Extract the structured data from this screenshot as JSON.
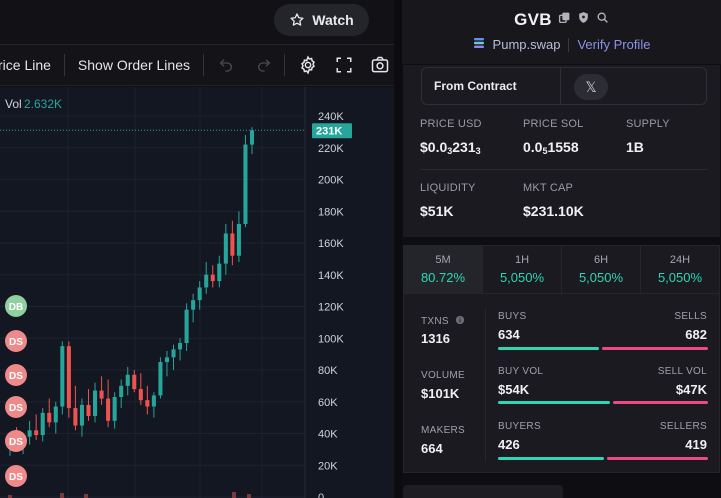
{
  "header": {
    "watch_label": "Watch"
  },
  "toolbar": {
    "price_line_label": "rice Line",
    "order_lines_label": "Show Order Lines",
    "icons": [
      "undo-icon",
      "redo-icon",
      "settings-icon",
      "fullscreen-icon",
      "camera-icon"
    ]
  },
  "chart": {
    "vol_label": "Vol",
    "vol_value": "2.632K",
    "current_price_label": "231K",
    "y_ticks": [
      "240K",
      "220K",
      "200K",
      "180K",
      "160K",
      "140K",
      "120K",
      "100K",
      "80K",
      "60K",
      "40K",
      "20K",
      "0"
    ],
    "markers": [
      "DB",
      "DS",
      "DS",
      "DS",
      "DS",
      "DS"
    ],
    "colors": {
      "up": "#26a69a",
      "down": "#ef5350",
      "marker_db": "#8fd19e",
      "marker_ds": "#f08a8a",
      "background": "#131722"
    }
  },
  "chart_data": {
    "type": "candlestick",
    "ylim": [
      0,
      240000
    ],
    "candles": [
      {
        "o": 32000,
        "h": 40000,
        "l": 26000,
        "c": 36000
      },
      {
        "o": 36000,
        "h": 44000,
        "l": 30000,
        "c": 33000
      },
      {
        "o": 33000,
        "h": 39000,
        "l": 27000,
        "c": 38000
      },
      {
        "o": 38000,
        "h": 48000,
        "l": 33000,
        "c": 42000
      },
      {
        "o": 42000,
        "h": 52000,
        "l": 36000,
        "c": 39000
      },
      {
        "o": 39000,
        "h": 56000,
        "l": 35000,
        "c": 53000
      },
      {
        "o": 53000,
        "h": 62000,
        "l": 44000,
        "c": 47000
      },
      {
        "o": 47000,
        "h": 60000,
        "l": 40000,
        "c": 57000
      },
      {
        "o": 57000,
        "h": 98000,
        "l": 52000,
        "c": 95000
      },
      {
        "o": 95000,
        "h": 98000,
        "l": 50000,
        "c": 56000
      },
      {
        "o": 56000,
        "h": 70000,
        "l": 42000,
        "c": 45000
      },
      {
        "o": 45000,
        "h": 62000,
        "l": 38000,
        "c": 58000
      },
      {
        "o": 58000,
        "h": 68000,
        "l": 48000,
        "c": 51000
      },
      {
        "o": 51000,
        "h": 72000,
        "l": 47000,
        "c": 67000
      },
      {
        "o": 67000,
        "h": 76000,
        "l": 58000,
        "c": 62000
      },
      {
        "o": 62000,
        "h": 74000,
        "l": 44000,
        "c": 48000
      },
      {
        "o": 48000,
        "h": 66000,
        "l": 43000,
        "c": 63000
      },
      {
        "o": 63000,
        "h": 74000,
        "l": 56000,
        "c": 70000
      },
      {
        "o": 70000,
        "h": 82000,
        "l": 64000,
        "c": 77000
      },
      {
        "o": 77000,
        "h": 80000,
        "l": 66000,
        "c": 68000
      },
      {
        "o": 68000,
        "h": 78000,
        "l": 58000,
        "c": 61000
      },
      {
        "o": 61000,
        "h": 70000,
        "l": 52000,
        "c": 57000
      },
      {
        "o": 57000,
        "h": 66000,
        "l": 50000,
        "c": 64000
      },
      {
        "o": 64000,
        "h": 88000,
        "l": 62000,
        "c": 85000
      },
      {
        "o": 85000,
        "h": 92000,
        "l": 76000,
        "c": 88000
      },
      {
        "o": 88000,
        "h": 96000,
        "l": 80000,
        "c": 93000
      },
      {
        "o": 93000,
        "h": 100000,
        "l": 86000,
        "c": 97000
      },
      {
        "o": 97000,
        "h": 122000,
        "l": 92000,
        "c": 118000
      },
      {
        "o": 118000,
        "h": 128000,
        "l": 110000,
        "c": 124000
      },
      {
        "o": 124000,
        "h": 136000,
        "l": 118000,
        "c": 132000
      },
      {
        "o": 132000,
        "h": 148000,
        "l": 128000,
        "c": 140000
      },
      {
        "o": 140000,
        "h": 146000,
        "l": 132000,
        "c": 136000
      },
      {
        "o": 136000,
        "h": 152000,
        "l": 132000,
        "c": 147000
      },
      {
        "o": 147000,
        "h": 172000,
        "l": 140000,
        "c": 166000
      },
      {
        "o": 166000,
        "h": 174000,
        "l": 146000,
        "c": 152000
      },
      {
        "o": 152000,
        "h": 180000,
        "l": 148000,
        "c": 172000
      },
      {
        "o": 172000,
        "h": 228000,
        "l": 170000,
        "c": 222000
      },
      {
        "o": 222000,
        "h": 233000,
        "l": 216000,
        "c": 231000
      }
    ]
  },
  "token": {
    "name": "GVB",
    "dex": "Pump.swap",
    "verify_label": "Verify Profile",
    "from_contract_label": "From Contract",
    "x_label": "𝕏"
  },
  "metrics": {
    "price_usd": {
      "label": "PRICE USD",
      "pre": "$0.0",
      "sub1": "3",
      "mid": "231",
      "sub2": "3"
    },
    "price_sol": {
      "label": "PRICE SOL",
      "pre": "0.0",
      "sub": "5",
      "post": "1558"
    },
    "supply": {
      "label": "SUPPLY",
      "value": "1B"
    },
    "liquidity": {
      "label": "LIQUIDITY",
      "value": "$51K"
    },
    "mkt_cap": {
      "label": "MKT CAP",
      "value": "$231.10K"
    }
  },
  "timeframes": [
    {
      "label": "5M",
      "value": "80.72%"
    },
    {
      "label": "1H",
      "value": "5,050%"
    },
    {
      "label": "6H",
      "value": "5,050%"
    },
    {
      "label": "24H",
      "value": "5,050%"
    }
  ],
  "stats": {
    "txns": {
      "label": "TXNS",
      "value": "1316"
    },
    "volume": {
      "label": "VOLUME",
      "value": "$101K"
    },
    "makers": {
      "label": "MAKERS",
      "value": "664"
    },
    "buys": {
      "label": "BUYS",
      "value": "634"
    },
    "sells": {
      "label": "SELLS",
      "value": "682"
    },
    "buy_vol": {
      "label": "BUY VOL",
      "value": "$54K"
    },
    "sell_vol": {
      "label": "SELL VOL",
      "value": "$47K"
    },
    "buyers": {
      "label": "BUYERS",
      "value": "426"
    },
    "sellers": {
      "label": "SELLERS",
      "value": "419"
    },
    "buy_ratios": [
      0.482,
      0.535,
      0.504
    ],
    "colors": {
      "buy": "#2fd6b2",
      "sell": "#ec4a86"
    }
  }
}
